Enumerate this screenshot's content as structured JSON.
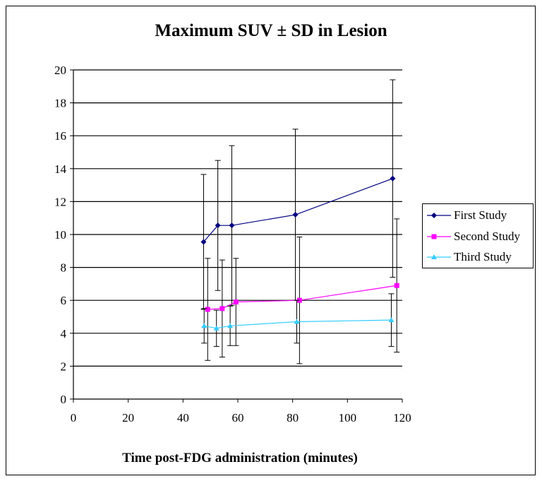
{
  "chart_data": {
    "type": "line",
    "title": "Maximum SUV ± SD in Lesion",
    "xlabel": "Time post-FDG administration (minutes)",
    "ylabel": "",
    "xlim": [
      0,
      120
    ],
    "ylim": [
      0,
      20
    ],
    "x_ticks": [
      "0",
      "20",
      "40",
      "60",
      "80",
      "100",
      "120"
    ],
    "y_ticks": [
      "0",
      "2",
      "4",
      "6",
      "8",
      "10",
      "12",
      "14",
      "16",
      "18",
      "20"
    ],
    "grid": "horizontal",
    "legend_position": "right",
    "series": [
      {
        "name": "First Study",
        "color": "#000080",
        "marker": "diamond",
        "points": [
          {
            "x": 47.5,
            "y": 9.55,
            "err": 4.1
          },
          {
            "x": 52.7,
            "y": 10.55,
            "err": 3.95
          },
          {
            "x": 57.8,
            "y": 10.55,
            "err": 4.85
          },
          {
            "x": 81.0,
            "y": 11.2,
            "err": 5.2
          },
          {
            "x": 116.5,
            "y": 13.4,
            "err": 6.0
          }
        ]
      },
      {
        "name": "Second Study",
        "color": "#ff00ff",
        "marker": "square",
        "points": [
          {
            "x": 49.0,
            "y": 5.45,
            "err": 3.1
          },
          {
            "x": 54.3,
            "y": 5.5,
            "err": 2.95
          },
          {
            "x": 59.3,
            "y": 5.9,
            "err": 2.65
          },
          {
            "x": 82.5,
            "y": 6.0,
            "err": 3.85
          },
          {
            "x": 118.0,
            "y": 6.9,
            "err": 4.05
          }
        ]
      },
      {
        "name": "Third Study",
        "color": "#33ccff",
        "marker": "triangle",
        "points": [
          {
            "x": 47.7,
            "y": 4.45,
            "err": 1.05
          },
          {
            "x": 52.2,
            "y": 4.3,
            "err": 1.1
          },
          {
            "x": 57.2,
            "y": 4.45,
            "err": 1.2
          },
          {
            "x": 81.5,
            "y": 4.7,
            "err": 1.3
          },
          {
            "x": 116.0,
            "y": 4.8,
            "err": 1.6
          }
        ]
      }
    ]
  }
}
